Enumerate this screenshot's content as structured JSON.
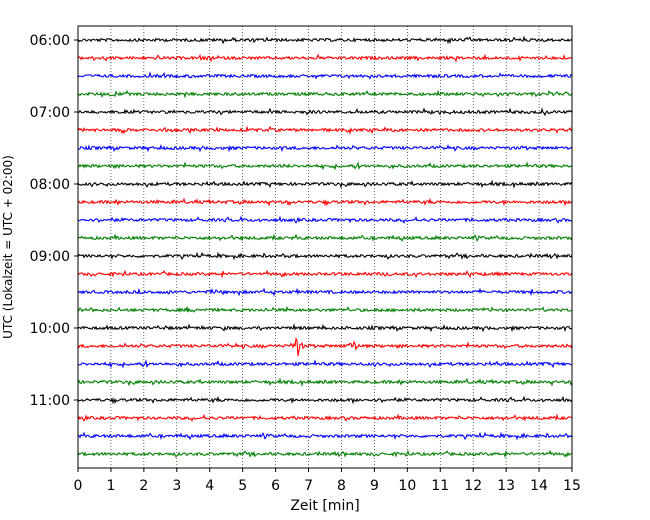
{
  "chart_data": {
    "type": "line",
    "title": "",
    "xlabel": "Zeit  [min]",
    "ylabel": "UTC (Lokalzeit = UTC + 02:00)",
    "xlim": [
      0,
      15
    ],
    "x_ticks": [
      0,
      1,
      2,
      3,
      4,
      5,
      6,
      7,
      8,
      9,
      10,
      11,
      12,
      13,
      14,
      15
    ],
    "x_tick_labels": [
      "0",
      "1",
      "2",
      "3",
      "4",
      "5",
      "6",
      "7",
      "8",
      "9",
      "10",
      "11",
      "12",
      "13",
      "14",
      "15"
    ],
    "y_tick_labels": [
      "06:00",
      "07:00",
      "08:00",
      "09:00",
      "10:00",
      "11:00"
    ],
    "trace_minutes": 15,
    "trace_start_times": [
      "06:00",
      "06:15",
      "06:30",
      "06:45",
      "07:00",
      "07:15",
      "07:30",
      "07:45",
      "08:00",
      "08:15",
      "08:30",
      "08:45",
      "09:00",
      "09:15",
      "09:30",
      "09:45",
      "10:00",
      "10:15",
      "10:30",
      "10:45",
      "11:00",
      "11:15",
      "11:30",
      "11:45"
    ],
    "color_cycle": [
      "#000000",
      "#ff0000",
      "#0000ff",
      "#008000"
    ],
    "grid": {
      "x": "dotted",
      "y": false
    },
    "events": [
      {
        "trace_start": "10:15",
        "minute": 6.65,
        "type": "spike"
      },
      {
        "trace_start": "10:15",
        "minute": 8.35,
        "type": "spike"
      }
    ]
  }
}
